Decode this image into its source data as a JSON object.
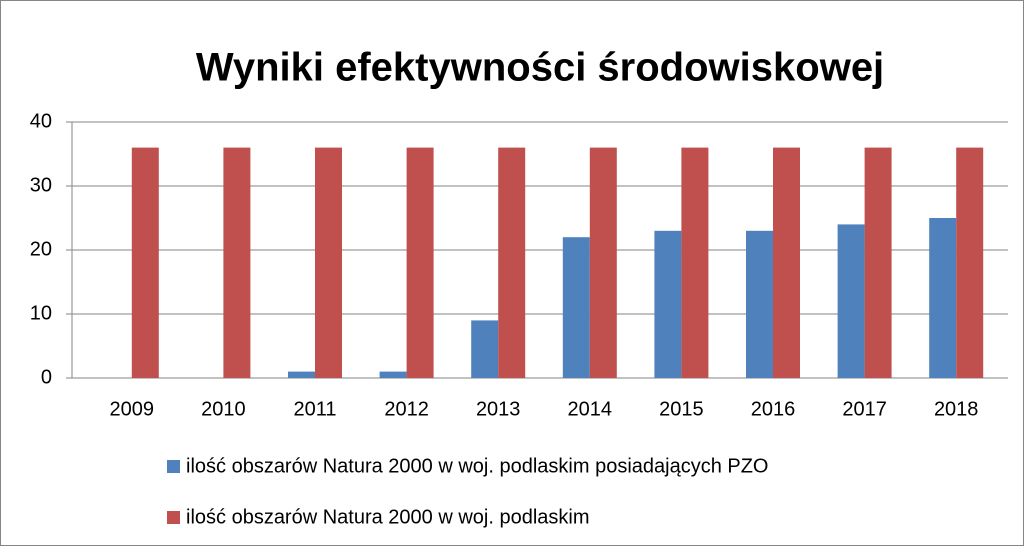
{
  "chart_data": {
    "type": "bar",
    "title": "Wyniki efektywności środowiskowej",
    "categories": [
      "2009",
      "2010",
      "2011",
      "2012",
      "2013",
      "2014",
      "2015",
      "2016",
      "2017",
      "2018"
    ],
    "series": [
      {
        "name": "ilość obszarów Natura 2000 w woj. podlaskim posiadających PZO",
        "color": "#4f81bd",
        "values": [
          0,
          0,
          1,
          1,
          9,
          22,
          23,
          23,
          24,
          25
        ]
      },
      {
        "name": "ilość obszarów Natura 2000 w woj. podlaskim",
        "color": "#c0504d",
        "values": [
          36,
          36,
          36,
          36,
          36,
          36,
          36,
          36,
          36,
          36
        ]
      }
    ],
    "ylim": [
      0,
      40
    ],
    "yticks": [
      0,
      10,
      20,
      30,
      40
    ],
    "grid": true,
    "legend": "bottom"
  }
}
